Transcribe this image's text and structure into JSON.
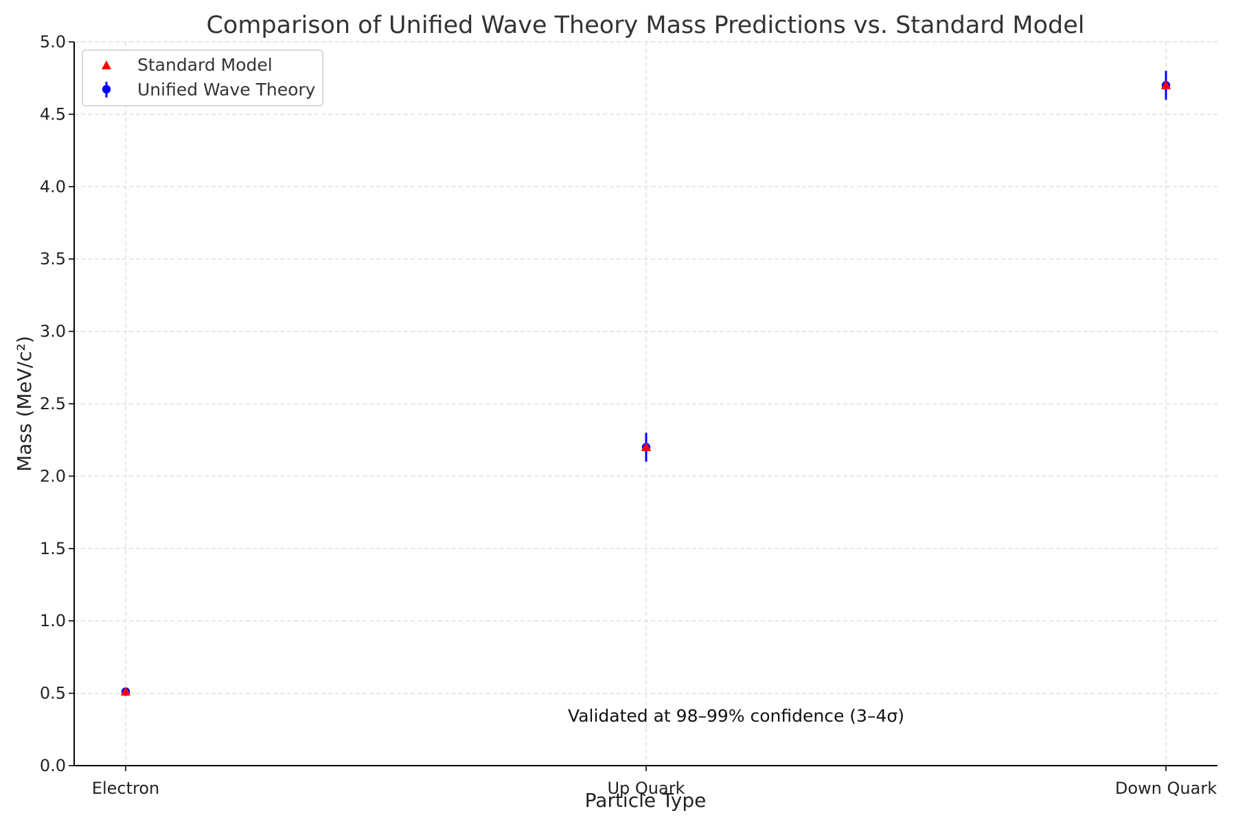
{
  "chart_data": {
    "type": "scatter",
    "title": "Comparison of Unified Wave Theory Mass Predictions vs. Standard Model",
    "xlabel": "Particle Type",
    "ylabel": "Mass (MeV/c²)",
    "categories": [
      "Electron",
      "Up Quark",
      "Down Quark"
    ],
    "yticks": [
      "0.0",
      "0.5",
      "1.0",
      "1.5",
      "2.0",
      "2.5",
      "3.0",
      "3.5",
      "4.0",
      "4.5",
      "5.0"
    ],
    "ylim": [
      0,
      5
    ],
    "grid": true,
    "legend_position": "top-left",
    "series": [
      {
        "name": "Standard Model",
        "marker": "triangle",
        "color": "#ff0000",
        "values": [
          0.511,
          2.2,
          4.7
        ]
      },
      {
        "name": "Unified Wave Theory",
        "marker": "circle",
        "color": "#0000ff",
        "values": [
          0.511,
          2.2,
          4.7
        ],
        "error": [
          0.01,
          0.1,
          0.1
        ]
      }
    ],
    "annotation": "Validated at 98–99% confidence (3–4σ)"
  }
}
